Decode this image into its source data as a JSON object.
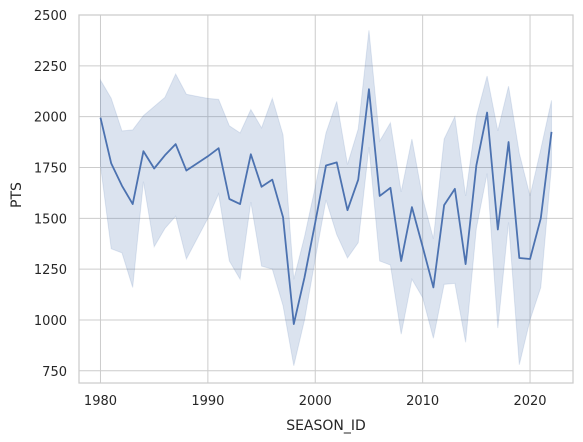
{
  "chart_data": {
    "type": "line",
    "xlabel": "SEASON_ID",
    "ylabel": "PTS",
    "xlim": [
      1978,
      2024
    ],
    "ylim": [
      690,
      2500
    ],
    "xticks": [
      1980,
      1990,
      2000,
      2010,
      2020
    ],
    "yticks": [
      750,
      1000,
      1250,
      1500,
      1750,
      2000,
      2250,
      2500
    ],
    "grid": true,
    "line_color": "#4c72b0",
    "band_color": "#4c72b0",
    "series": [
      {
        "x": [
          1980,
          1981,
          1982,
          1983,
          1984,
          1985,
          1986,
          1987,
          1988,
          1989,
          1990,
          1991,
          1992,
          1993,
          1994,
          1995,
          1996,
          1997,
          1998,
          1999,
          2000,
          2001,
          2002,
          2003,
          2004,
          2005,
          2006,
          2007,
          2008,
          2009,
          2010,
          2011,
          2012,
          2013,
          2014,
          2015,
          2016,
          2017,
          2018,
          2019,
          2020,
          2021,
          2022
        ],
        "y": [
          1995,
          1770,
          1660,
          1570,
          1830,
          1745,
          1810,
          1865,
          1735,
          1770,
          1805,
          1845,
          1595,
          1570,
          1815,
          1655,
          1690,
          1505,
          980,
          1210,
          1480,
          1760,
          1775,
          1540,
          1690,
          2135,
          1610,
          1650,
          1290,
          1555,
          1360,
          1160,
          1565,
          1645,
          1275,
          1760,
          2020,
          1445,
          1875,
          1305,
          1300,
          1500,
          1925
        ],
        "ci_lower": [
          1760,
          1350,
          1330,
          1160,
          1680,
          1360,
          1450,
          1510,
          1300,
          1400,
          1500,
          1620,
          1290,
          1200,
          1580,
          1265,
          1250,
          1070,
          775,
          1000,
          1300,
          1590,
          1420,
          1305,
          1380,
          1850,
          1290,
          1270,
          930,
          1200,
          1110,
          910,
          1175,
          1180,
          890,
          1450,
          1720,
          960,
          1480,
          780,
          1000,
          1160,
          1760
        ],
        "ci_upper": [
          2180,
          2090,
          1930,
          1935,
          2005,
          2050,
          2095,
          2210,
          2110,
          2100,
          2090,
          2085,
          1955,
          1920,
          2035,
          1945,
          2090,
          1910,
          1200,
          1410,
          1655,
          1920,
          2075,
          1765,
          1940,
          2425,
          1880,
          1970,
          1630,
          1890,
          1600,
          1400,
          1890,
          2000,
          1610,
          2000,
          2200,
          1930,
          2150,
          1820,
          1610,
          1840,
          2080
        ]
      }
    ]
  }
}
